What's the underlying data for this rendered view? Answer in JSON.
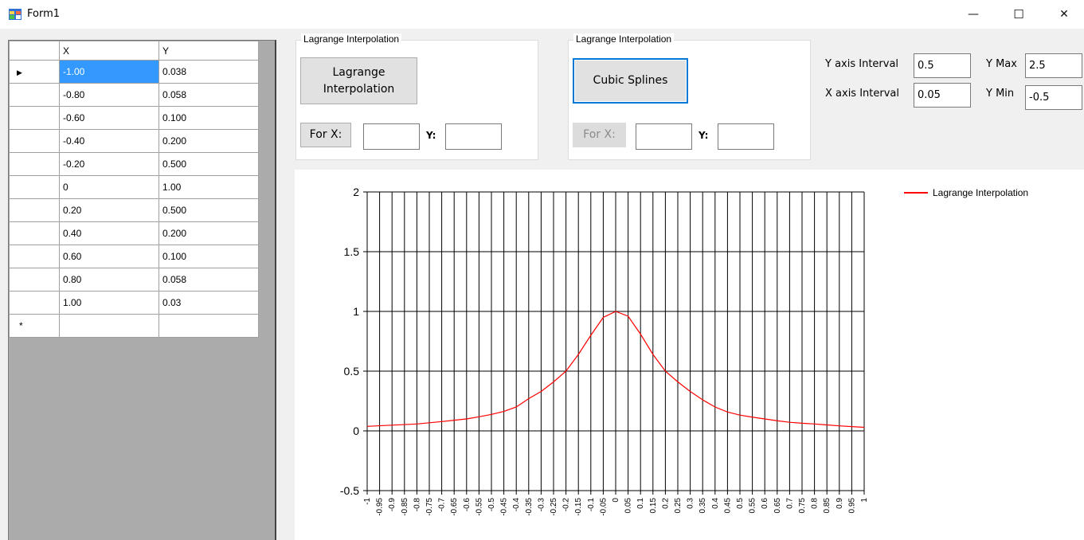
{
  "window": {
    "title": "Form1",
    "minimize_glyph": "—",
    "maximize_glyph": "☐",
    "close_glyph": "✕"
  },
  "grid": {
    "columns": [
      "X",
      "Y"
    ],
    "rows": [
      {
        "x": "-1.00",
        "y": "0.038"
      },
      {
        "x": "-0.80",
        "y": "0.058"
      },
      {
        "x": "-0.60",
        "y": "0.100"
      },
      {
        "x": "-0.40",
        "y": "0.200"
      },
      {
        "x": "-0.20",
        "y": "0.500"
      },
      {
        "x": "0",
        "y": "1.00"
      },
      {
        "x": "0.20",
        "y": "0.500"
      },
      {
        "x": "0.40",
        "y": "0.200"
      },
      {
        "x": "0.60",
        "y": "0.100"
      },
      {
        "x": "0.80",
        "y": "0.058"
      },
      {
        "x": "1.00",
        "y": "0.03"
      }
    ],
    "current_row_glyph": "▶",
    "new_row_glyph": "*"
  },
  "lagrange_group": {
    "title": "Lagrange Interpolation",
    "button_line1": "Lagrange",
    "button_line2": "Interpolation",
    "for_x_label": "For X:",
    "x_value": "",
    "y_label": "Y:",
    "y_value": ""
  },
  "cubic_group": {
    "title": "Lagrange Interpolation",
    "button_label": "Cubic Splines",
    "for_x_label": "For X:",
    "x_value": "",
    "y_label": "Y:",
    "y_value": ""
  },
  "axis_settings": {
    "y_interval_label": "Y axis Interval",
    "y_interval_value": "0.5",
    "x_interval_label": "X axis Interval",
    "x_interval_value": "0.05",
    "y_max_label": "Y Max",
    "y_max_value": "2.5",
    "y_min_label": "Y Min",
    "y_min_value": "-0.5"
  },
  "colors": {
    "series": "#ff0000",
    "selection": "#3399ff",
    "grid_background": "#ababab",
    "focus": "#0078d7"
  },
  "chart_data": {
    "type": "line",
    "title": "",
    "xlabel": "",
    "ylabel": "",
    "xlim": [
      -1,
      1
    ],
    "ylim": [
      -0.5,
      2
    ],
    "x_interval": 0.05,
    "y_interval": 0.5,
    "y_ticks": [
      "-0.5",
      "0",
      "0.5",
      "1",
      "1.5",
      "2"
    ],
    "x_ticks": [
      "-1",
      "-0.95",
      "-0.9",
      "-0.85",
      "-0.8",
      "-0.75",
      "-0.7",
      "-0.65",
      "-0.6",
      "-0.55",
      "-0.5",
      "-0.45",
      "-0.4",
      "-0.35",
      "-0.3",
      "-0.25",
      "-0.2",
      "-0.15",
      "-0.1",
      "-0.05",
      "0",
      "0.05",
      "0.1",
      "0.15",
      "0.2",
      "0.25",
      "0.3",
      "0.35",
      "0.4",
      "0.45",
      "0.5",
      "0.55",
      "0.6",
      "0.65",
      "0.7",
      "0.75",
      "0.8",
      "0.85",
      "0.9",
      "0.95",
      "1"
    ],
    "grid": true,
    "legend_position": "top-right",
    "series": [
      {
        "name": "Lagrange Interpolation",
        "color": "#ff0000",
        "x": [
          -1,
          -0.95,
          -0.9,
          -0.85,
          -0.8,
          -0.75,
          -0.7,
          -0.65,
          -0.6,
          -0.55,
          -0.5,
          -0.45,
          -0.4,
          -0.35,
          -0.3,
          -0.25,
          -0.2,
          -0.15,
          -0.1,
          -0.05,
          0,
          0.05,
          0.1,
          0.15,
          0.2,
          0.25,
          0.3,
          0.35,
          0.4,
          0.45,
          0.5,
          0.55,
          0.6,
          0.65,
          0.7,
          0.75,
          0.8,
          0.85,
          0.9,
          0.95,
          1
        ],
        "y": [
          0.038,
          0.043,
          0.048,
          0.053,
          0.058,
          0.068,
          0.078,
          0.089,
          0.1,
          0.118,
          0.138,
          0.163,
          0.2,
          0.27,
          0.33,
          0.41,
          0.5,
          0.64,
          0.8,
          0.95,
          1.0,
          0.96,
          0.81,
          0.64,
          0.5,
          0.41,
          0.33,
          0.26,
          0.2,
          0.158,
          0.132,
          0.115,
          0.1,
          0.085,
          0.072,
          0.064,
          0.058,
          0.05,
          0.042,
          0.036,
          0.03
        ]
      }
    ]
  }
}
